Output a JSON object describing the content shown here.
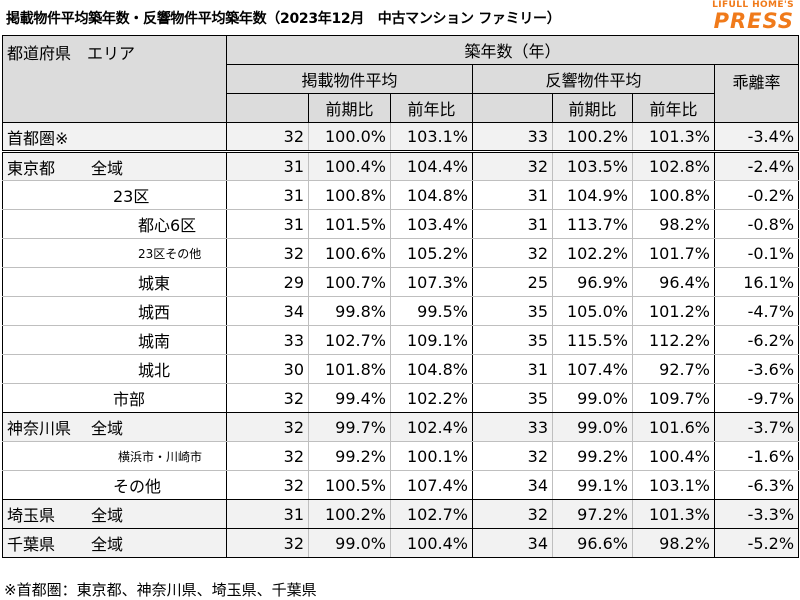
{
  "title": "掲載物件平均築年数・反響物件平均築年数（2023年12月　中古マンション ファミリー）",
  "logo": {
    "top": "LIFULL HOME'S",
    "main": "PRESS"
  },
  "header": {
    "region": "都道府県　エリア",
    "group": "築年数（年）",
    "listing": "掲載物件平均",
    "response": "反響物件平均",
    "gap": "乖離率",
    "mom": "前期比",
    "yoy": "前年比"
  },
  "rows": [
    {
      "pref": "首都圏※",
      "area": "",
      "l": "32",
      "lm": "100.0%",
      "ly": "103.1%",
      "r": "33",
      "rm": "100.2%",
      "ry": "101.3%",
      "g": "-3.4%"
    },
    {
      "pref": "東京都",
      "area": "全域",
      "l": "31",
      "lm": "100.4%",
      "ly": "104.4%",
      "r": "32",
      "rm": "103.5%",
      "ry": "102.8%",
      "g": "-2.4%"
    },
    {
      "pref": "",
      "area": "23区",
      "l": "31",
      "lm": "100.8%",
      "ly": "104.8%",
      "r": "31",
      "rm": "104.9%",
      "ry": "100.8%",
      "g": "-0.2%"
    },
    {
      "pref": "",
      "area": "都心6区",
      "l": "31",
      "lm": "101.5%",
      "ly": "103.4%",
      "r": "31",
      "rm": "113.7%",
      "ry": "98.2%",
      "g": "-0.8%"
    },
    {
      "pref": "",
      "area": "23区その他",
      "l": "32",
      "lm": "100.6%",
      "ly": "105.2%",
      "r": "32",
      "rm": "102.2%",
      "ry": "101.7%",
      "g": "-0.1%"
    },
    {
      "pref": "",
      "area": "城東",
      "l": "29",
      "lm": "100.7%",
      "ly": "107.3%",
      "r": "25",
      "rm": "96.9%",
      "ry": "96.4%",
      "g": "16.1%"
    },
    {
      "pref": "",
      "area": "城西",
      "l": "34",
      "lm": "99.8%",
      "ly": "99.5%",
      "r": "35",
      "rm": "105.0%",
      "ry": "101.2%",
      "g": "-4.7%"
    },
    {
      "pref": "",
      "area": "城南",
      "l": "33",
      "lm": "102.7%",
      "ly": "109.1%",
      "r": "35",
      "rm": "115.5%",
      "ry": "112.2%",
      "g": "-6.2%"
    },
    {
      "pref": "",
      "area": "城北",
      "l": "30",
      "lm": "101.8%",
      "ly": "104.8%",
      "r": "31",
      "rm": "107.4%",
      "ry": "92.7%",
      "g": "-3.6%"
    },
    {
      "pref": "",
      "area": "市部",
      "l": "32",
      "lm": "99.4%",
      "ly": "102.2%",
      "r": "35",
      "rm": "99.0%",
      "ry": "109.7%",
      "g": "-9.7%"
    },
    {
      "pref": "神奈川県",
      "area": "全域",
      "l": "32",
      "lm": "99.7%",
      "ly": "102.4%",
      "r": "33",
      "rm": "99.0%",
      "ry": "101.6%",
      "g": "-3.7%"
    },
    {
      "pref": "",
      "area": "横浜市・川崎市",
      "l": "32",
      "lm": "99.2%",
      "ly": "100.1%",
      "r": "32",
      "rm": "99.2%",
      "ry": "100.4%",
      "g": "-1.6%"
    },
    {
      "pref": "",
      "area": "その他",
      "l": "32",
      "lm": "100.5%",
      "ly": "107.4%",
      "r": "34",
      "rm": "99.1%",
      "ry": "103.1%",
      "g": "-6.3%"
    },
    {
      "pref": "埼玉県",
      "area": "全域",
      "l": "31",
      "lm": "100.2%",
      "ly": "102.7%",
      "r": "32",
      "rm": "97.2%",
      "ry": "101.3%",
      "g": "-3.3%"
    },
    {
      "pref": "千葉県",
      "area": "全域",
      "l": "32",
      "lm": "99.0%",
      "ly": "100.4%",
      "r": "34",
      "rm": "96.6%",
      "ry": "98.2%",
      "g": "-5.2%"
    }
  ],
  "footnote": "※首都圏：東京都、神奈川県、埼玉県、千葉県"
}
